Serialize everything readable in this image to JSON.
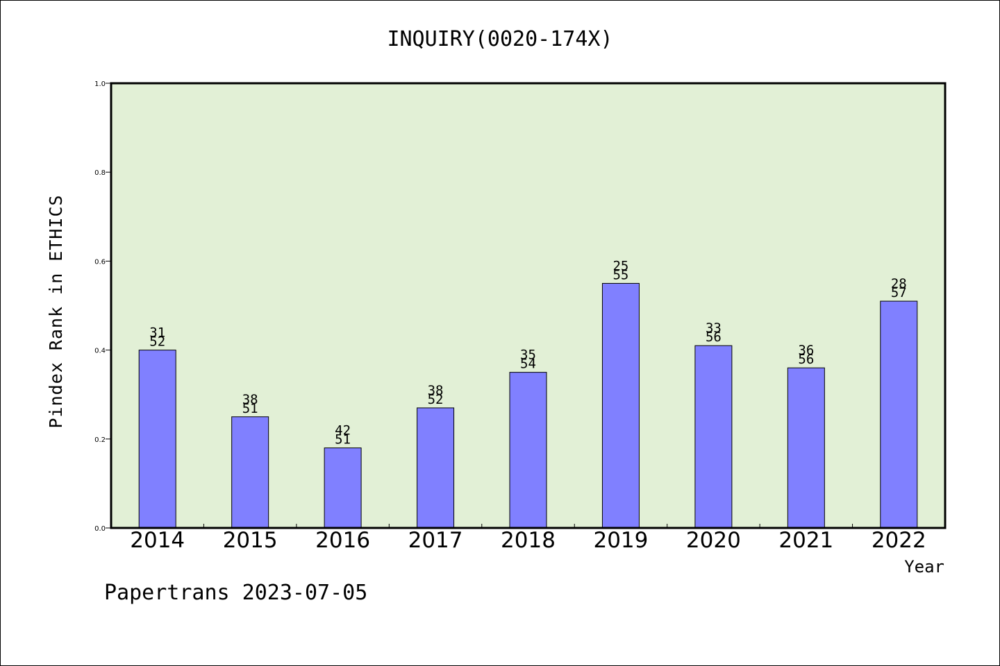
{
  "footer_text": "Papertrans 2023-07-05",
  "chart_data": {
    "type": "bar",
    "title": "INQUIRY(0020-174X)",
    "xlabel": "Year",
    "ylabel": "Pindex Rank in ETHICS",
    "ylim": [
      0,
      1.0
    ],
    "yticks": [
      "0.0",
      "0.2",
      "0.4",
      "0.6",
      "0.8",
      "1.0"
    ],
    "grid": false,
    "plot_background": "#e2f0d6",
    "bar_color": "#8080ff",
    "categories": [
      "2014",
      "2015",
      "2016",
      "2017",
      "2018",
      "2019",
      "2020",
      "2021",
      "2022"
    ],
    "values": [
      0.4,
      0.25,
      0.18,
      0.27,
      0.35,
      0.55,
      0.41,
      0.36,
      0.51
    ],
    "bar_labels": [
      {
        "rank": "31",
        "total": "52"
      },
      {
        "rank": "38",
        "total": "51"
      },
      {
        "rank": "42",
        "total": "51"
      },
      {
        "rank": "38",
        "total": "52"
      },
      {
        "rank": "35",
        "total": "54"
      },
      {
        "rank": "25",
        "total": "55"
      },
      {
        "rank": "33",
        "total": "56"
      },
      {
        "rank": "36",
        "total": "56"
      },
      {
        "rank": "28",
        "total": "57"
      }
    ]
  }
}
